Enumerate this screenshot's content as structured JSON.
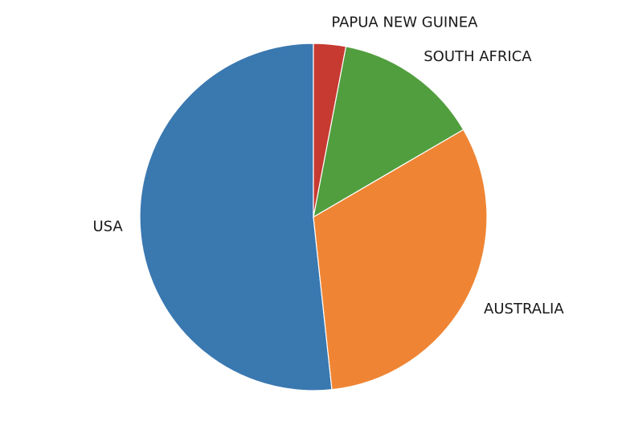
{
  "chart_data": {
    "type": "pie",
    "title": "",
    "start_angle_deg": 90,
    "direction": "counterclockwise",
    "slices": [
      {
        "label": "USA",
        "value": 51.7,
        "color": "#3a78b0"
      },
      {
        "label": "AUSTRALIA",
        "value": 31.7,
        "color": "#ef8534"
      },
      {
        "label": "SOUTH AFRICA",
        "value": 13.6,
        "color": "#519e3e"
      },
      {
        "label": "PAPUA NEW GUINEA",
        "value": 3.0,
        "color": "#c63a32"
      }
    ],
    "legend": "none"
  }
}
